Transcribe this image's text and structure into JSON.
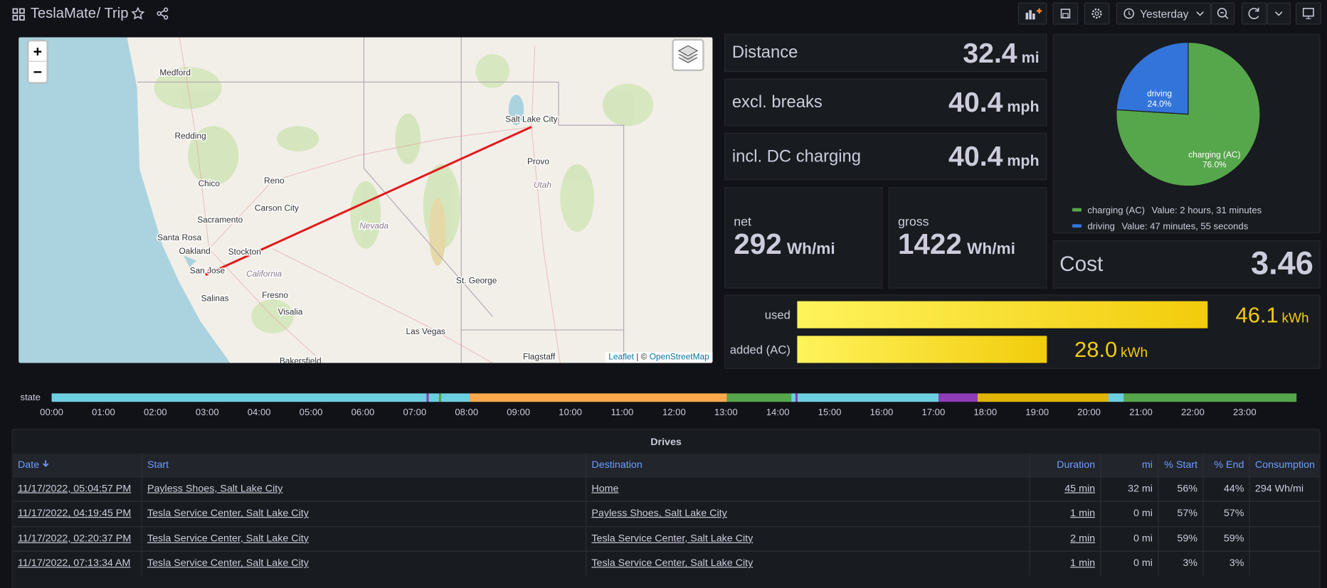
{
  "header": {
    "title": "TeslaMate",
    "breadcrumb": "/ Trip",
    "time_range": "Yesterday"
  },
  "map": {
    "zoom_in": "+",
    "zoom_out": "−",
    "labels": [
      "Medford",
      "Redding",
      "Chico",
      "Reno",
      "Carson City",
      "Sacramento",
      "Santa Rosa",
      "Oakland",
      "Stockton",
      "San Jose",
      "California",
      "Fresno",
      "Salinas",
      "Visalia",
      "Nevada",
      "Salt Lake City",
      "Provo",
      "Utah",
      "St. George",
      "Las Vegas",
      "Flagstaff",
      "Bakersfield"
    ],
    "attribution": [
      "Leaflet",
      "| ©",
      "OpenStreetMap"
    ]
  },
  "stats": [
    {
      "label": "Distance",
      "value": "32.4",
      "unit": "mi"
    },
    {
      "label": "excl. breaks",
      "value": "40.4",
      "unit": "mph"
    },
    {
      "label": "incl. DC charging",
      "value": "40.4",
      "unit": "mph"
    }
  ],
  "efficiency": [
    {
      "label": "net",
      "value": "292",
      "unit": "Wh/mi"
    },
    {
      "label": "gross",
      "value": "1422",
      "unit": "Wh/mi"
    }
  ],
  "cost": {
    "label": "Cost",
    "value": "3.46"
  },
  "pie": {
    "type": "pie",
    "categories": [
      "charging (AC)",
      "driving"
    ],
    "values": [
      76.0,
      24.0
    ],
    "value_labels": [
      "76.0%",
      "24.0%"
    ],
    "colors": [
      "#56a64b",
      "#3274d9"
    ],
    "legend_values": [
      "Value: 2 hours, 31 minutes",
      "Value: 47 minutes, 55 seconds"
    ]
  },
  "energy": {
    "type": "bar",
    "categories": [
      "used",
      "added (AC)"
    ],
    "values": [
      46.1,
      28.0
    ],
    "value_labels": [
      "46.1",
      "28.0"
    ],
    "unit": "kWh",
    "color": "#f2cc0c"
  },
  "timeline": {
    "label": "state",
    "xlim": [
      0,
      24
    ],
    "xticks": [
      {
        "value": 0,
        "label": "00:00"
      },
      {
        "value": 1,
        "label": "01:00"
      },
      {
        "value": 2,
        "label": "02:00"
      },
      {
        "value": 3,
        "label": "03:00"
      },
      {
        "value": 4,
        "label": "04:00"
      },
      {
        "value": 5,
        "label": "05:00"
      },
      {
        "value": 6,
        "label": "06:00"
      },
      {
        "value": 7,
        "label": "07:00"
      },
      {
        "value": 8,
        "label": "08:00"
      },
      {
        "value": 9,
        "label": "09:00"
      },
      {
        "value": 10,
        "label": "10:00"
      },
      {
        "value": 11,
        "label": "11:00"
      },
      {
        "value": 12,
        "label": "12:00"
      },
      {
        "value": 13,
        "label": "13:00"
      },
      {
        "value": 14,
        "label": "14:00"
      },
      {
        "value": 15,
        "label": "15:00"
      },
      {
        "value": 16,
        "label": "16:00"
      },
      {
        "value": 17,
        "label": "17:00"
      },
      {
        "value": 18,
        "label": "18:00"
      },
      {
        "value": 19,
        "label": "19:00"
      },
      {
        "value": 20,
        "label": "20:00"
      },
      {
        "value": 21,
        "label": "21:00"
      },
      {
        "value": 22,
        "label": "22:00"
      },
      {
        "value": 23,
        "label": "23:00"
      }
    ],
    "segments": [
      {
        "start": 0,
        "end": 7.23,
        "color": "#6ccfe0"
      },
      {
        "start": 7.23,
        "end": 7.27,
        "color": "#8f3bb8"
      },
      {
        "start": 7.27,
        "end": 7.47,
        "color": "#6ccfe0"
      },
      {
        "start": 7.47,
        "end": 7.51,
        "color": "#56a64b"
      },
      {
        "start": 7.51,
        "end": 8.06,
        "color": "#6ccfe0"
      },
      {
        "start": 8.06,
        "end": 13.02,
        "color": "#ffa94d"
      },
      {
        "start": 13.02,
        "end": 14.26,
        "color": "#56a64b"
      },
      {
        "start": 14.26,
        "end": 14.34,
        "color": "#6ccfe0"
      },
      {
        "start": 14.34,
        "end": 14.38,
        "color": "#8f3bb8"
      },
      {
        "start": 14.38,
        "end": 17.1,
        "color": "#6ccfe0"
      },
      {
        "start": 17.1,
        "end": 17.85,
        "color": "#8f3bb8"
      },
      {
        "start": 17.85,
        "end": 20.37,
        "color": "#e0b400"
      },
      {
        "start": 20.37,
        "end": 20.67,
        "color": "#6ccfe0"
      },
      {
        "start": 20.67,
        "end": 24,
        "color": "#56a64b"
      }
    ]
  },
  "table": {
    "title": "Drives",
    "columns": [
      "Date",
      "Start",
      "Destination",
      "Duration",
      "mi",
      "% Start",
      "% End",
      "Consumption"
    ],
    "rows": [
      [
        "11/17/2022, 05:04:57 PM",
        "Payless Shoes, Salt Lake City",
        "Home",
        "45 min",
        "32 mi",
        "56%",
        "44%",
        "294 Wh/mi"
      ],
      [
        "11/17/2022, 04:19:45 PM",
        "Tesla Service Center, Salt Lake City",
        "Payless Shoes, Salt Lake City",
        "1 min",
        "0 mi",
        "57%",
        "57%",
        null
      ],
      [
        "11/17/2022, 02:20:37 PM",
        "Tesla Service Center, Salt Lake City",
        "Tesla Service Center, Salt Lake City",
        "2 min",
        "0 mi",
        "59%",
        "59%",
        null
      ],
      [
        "11/17/2022, 07:13:34 AM",
        "Tesla Service Center, Salt Lake City",
        "Tesla Service Center, Salt Lake City",
        "1 min",
        "0 mi",
        "3%",
        "3%",
        null
      ]
    ]
  }
}
